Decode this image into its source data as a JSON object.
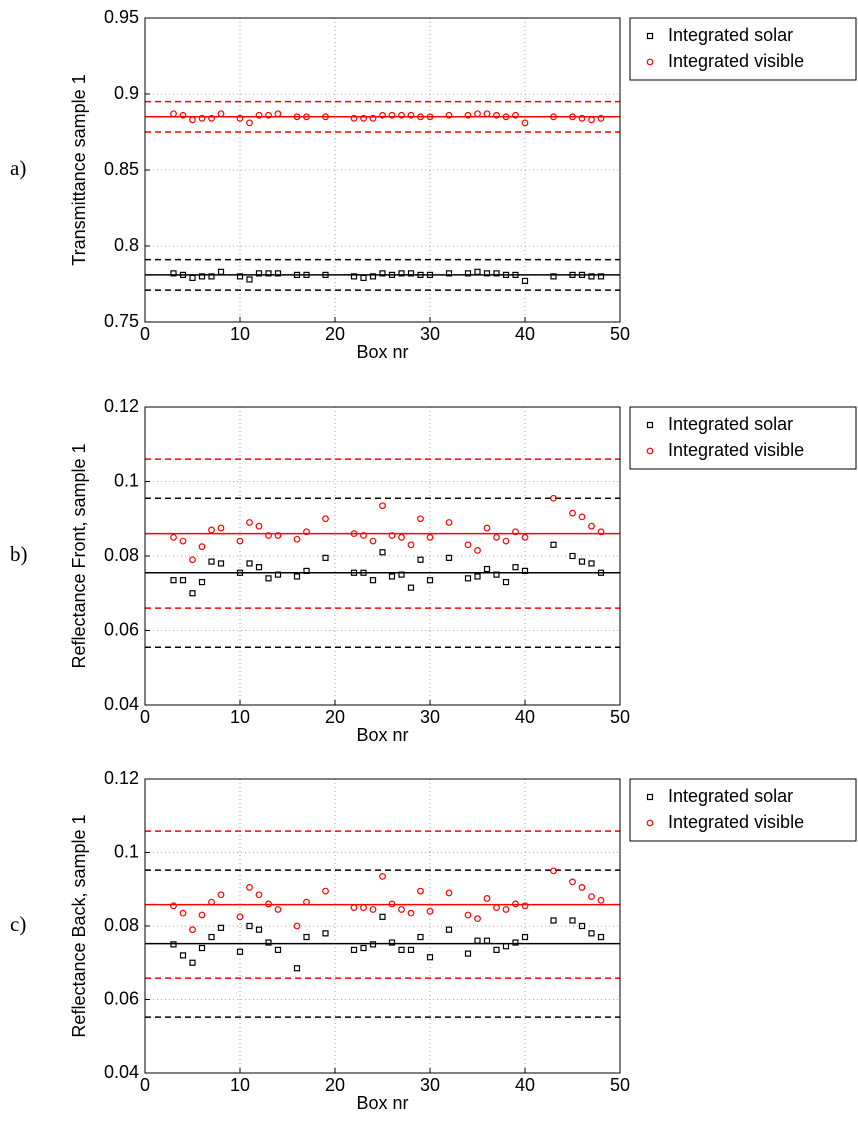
{
  "chart_data": [
    {
      "type": "scatter",
      "panel_label": "a)",
      "xlabel": "Box nr",
      "ylabel": "Transmittance sample 1",
      "x": [
        3,
        4,
        5,
        6,
        7,
        8,
        10,
        11,
        12,
        13,
        14,
        16,
        17,
        19,
        22,
        23,
        24,
        25,
        26,
        27,
        28,
        29,
        30,
        32,
        34,
        35,
        36,
        37,
        38,
        39,
        40,
        43,
        45,
        46,
        47,
        48
      ],
      "series": [
        {
          "name": "Integrated solar",
          "color": "#000000",
          "marker": "square",
          "values": [
            0.782,
            0.781,
            0.779,
            0.78,
            0.78,
            0.783,
            0.78,
            0.778,
            0.782,
            0.782,
            0.782,
            0.781,
            0.781,
            0.781,
            0.78,
            0.779,
            0.78,
            0.782,
            0.781,
            0.782,
            0.782,
            0.781,
            0.781,
            0.782,
            0.782,
            0.783,
            0.782,
            0.782,
            0.781,
            0.781,
            0.777,
            0.78,
            0.781,
            0.781,
            0.78,
            0.78
          ]
        },
        {
          "name": "Integrated visible",
          "color": "#ff0000",
          "marker": "circle",
          "values": [
            0.887,
            0.886,
            0.883,
            0.884,
            0.884,
            0.887,
            0.884,
            0.881,
            0.886,
            0.886,
            0.887,
            0.885,
            0.885,
            0.885,
            0.884,
            0.884,
            0.884,
            0.886,
            0.886,
            0.886,
            0.886,
            0.885,
            0.885,
            0.886,
            0.886,
            0.887,
            0.887,
            0.886,
            0.885,
            0.886,
            0.881,
            0.885,
            0.885,
            0.884,
            0.883,
            0.884
          ]
        }
      ],
      "reference_lines": [
        {
          "value": 0.781,
          "color": "#000000",
          "style": "solid"
        },
        {
          "value": 0.791,
          "color": "#000000",
          "style": "dashed"
        },
        {
          "value": 0.771,
          "color": "#000000",
          "style": "dashed"
        },
        {
          "value": 0.885,
          "color": "#ff0000",
          "style": "solid"
        },
        {
          "value": 0.895,
          "color": "#ff0000",
          "style": "dashed"
        },
        {
          "value": 0.875,
          "color": "#ff0000",
          "style": "dashed"
        }
      ],
      "xlim": [
        0,
        50
      ],
      "xticks": [
        0,
        10,
        20,
        30,
        40,
        50
      ],
      "ylim": [
        0.75,
        0.95
      ],
      "yticks": [
        0.75,
        0.8,
        0.85,
        0.9,
        0.95
      ],
      "grid": true,
      "legend": "outside-right"
    },
    {
      "type": "scatter",
      "panel_label": "b)",
      "xlabel": "Box nr",
      "ylabel": "Reflectance Front, sample 1",
      "x": [
        3,
        4,
        5,
        6,
        7,
        8,
        10,
        11,
        12,
        13,
        14,
        16,
        17,
        19,
        22,
        23,
        24,
        25,
        26,
        27,
        28,
        29,
        30,
        32,
        34,
        35,
        36,
        37,
        38,
        39,
        40,
        43,
        45,
        46,
        47,
        48
      ],
      "series": [
        {
          "name": "Integrated solar",
          "color": "#000000",
          "marker": "square",
          "values": [
            0.0735,
            0.0735,
            0.07,
            0.073,
            0.0785,
            0.078,
            0.0755,
            0.078,
            0.077,
            0.074,
            0.075,
            0.0745,
            0.076,
            0.0795,
            0.0755,
            0.0755,
            0.0735,
            0.081,
            0.0745,
            0.075,
            0.0715,
            0.079,
            0.0735,
            0.0795,
            0.074,
            0.0745,
            0.0765,
            0.075,
            0.073,
            0.077,
            0.076,
            0.083,
            0.08,
            0.0785,
            0.078,
            0.0755
          ]
        },
        {
          "name": "Integrated visible",
          "color": "#ff0000",
          "marker": "circle",
          "values": [
            0.085,
            0.084,
            0.079,
            0.0825,
            0.087,
            0.0875,
            0.084,
            0.089,
            0.088,
            0.0855,
            0.0855,
            0.0845,
            0.0865,
            0.09,
            0.086,
            0.0855,
            0.084,
            0.0935,
            0.0855,
            0.085,
            0.083,
            0.09,
            0.085,
            0.089,
            0.083,
            0.0815,
            0.0875,
            0.085,
            0.084,
            0.0865,
            0.085,
            0.0955,
            0.0915,
            0.0905,
            0.088,
            0.0865
          ]
        }
      ],
      "reference_lines": [
        {
          "value": 0.0755,
          "color": "#000000",
          "style": "solid"
        },
        {
          "value": 0.0955,
          "color": "#000000",
          "style": "dashed"
        },
        {
          "value": 0.0555,
          "color": "#000000",
          "style": "dashed"
        },
        {
          "value": 0.086,
          "color": "#ff0000",
          "style": "solid"
        },
        {
          "value": 0.106,
          "color": "#ff0000",
          "style": "dashed"
        },
        {
          "value": 0.066,
          "color": "#ff0000",
          "style": "dashed"
        }
      ],
      "xlim": [
        0,
        50
      ],
      "xticks": [
        0,
        10,
        20,
        30,
        40,
        50
      ],
      "ylim": [
        0.04,
        0.12
      ],
      "yticks": [
        0.04,
        0.06,
        0.08,
        0.1,
        0.12
      ],
      "grid": true,
      "legend": "outside-right"
    },
    {
      "type": "scatter",
      "panel_label": "c)",
      "xlabel": "Box nr",
      "ylabel": "Reflectance Back, sample 1",
      "x": [
        3,
        4,
        5,
        6,
        7,
        8,
        10,
        11,
        12,
        13,
        14,
        16,
        17,
        19,
        22,
        23,
        24,
        25,
        26,
        27,
        28,
        29,
        30,
        32,
        34,
        35,
        36,
        37,
        38,
        39,
        40,
        43,
        45,
        46,
        47,
        48
      ],
      "series": [
        {
          "name": "Integrated solar",
          "color": "#000000",
          "marker": "square",
          "values": [
            0.075,
            0.072,
            0.07,
            0.074,
            0.077,
            0.0795,
            0.073,
            0.08,
            0.079,
            0.0755,
            0.0735,
            0.0685,
            0.077,
            0.078,
            0.0735,
            0.074,
            0.075,
            0.0825,
            0.0755,
            0.0735,
            0.0735,
            0.077,
            0.0715,
            0.079,
            0.0725,
            0.076,
            0.076,
            0.0735,
            0.0745,
            0.0755,
            0.077,
            0.0815,
            0.0815,
            0.08,
            0.078,
            0.077
          ]
        },
        {
          "name": "Integrated visible",
          "color": "#ff0000",
          "marker": "circle",
          "values": [
            0.0855,
            0.0835,
            0.079,
            0.083,
            0.0865,
            0.0885,
            0.0825,
            0.0905,
            0.0885,
            0.086,
            0.0845,
            0.08,
            0.0865,
            0.0895,
            0.085,
            0.085,
            0.0845,
            0.0935,
            0.086,
            0.0845,
            0.0835,
            0.0895,
            0.084,
            0.089,
            0.083,
            0.082,
            0.0875,
            0.085,
            0.0845,
            0.086,
            0.0855,
            0.095,
            0.092,
            0.0905,
            0.088,
            0.087
          ]
        }
      ],
      "reference_lines": [
        {
          "value": 0.0752,
          "color": "#000000",
          "style": "solid"
        },
        {
          "value": 0.0952,
          "color": "#000000",
          "style": "dashed"
        },
        {
          "value": 0.0552,
          "color": "#000000",
          "style": "dashed"
        },
        {
          "value": 0.0858,
          "color": "#ff0000",
          "style": "solid"
        },
        {
          "value": 0.1058,
          "color": "#ff0000",
          "style": "dashed"
        },
        {
          "value": 0.0658,
          "color": "#ff0000",
          "style": "dashed"
        }
      ],
      "xlim": [
        0,
        50
      ],
      "xticks": [
        0,
        10,
        20,
        30,
        40,
        50
      ],
      "ylim": [
        0.04,
        0.12
      ],
      "yticks": [
        0.04,
        0.06,
        0.08,
        0.1,
        0.12
      ],
      "grid": true,
      "legend": "outside-right"
    }
  ]
}
